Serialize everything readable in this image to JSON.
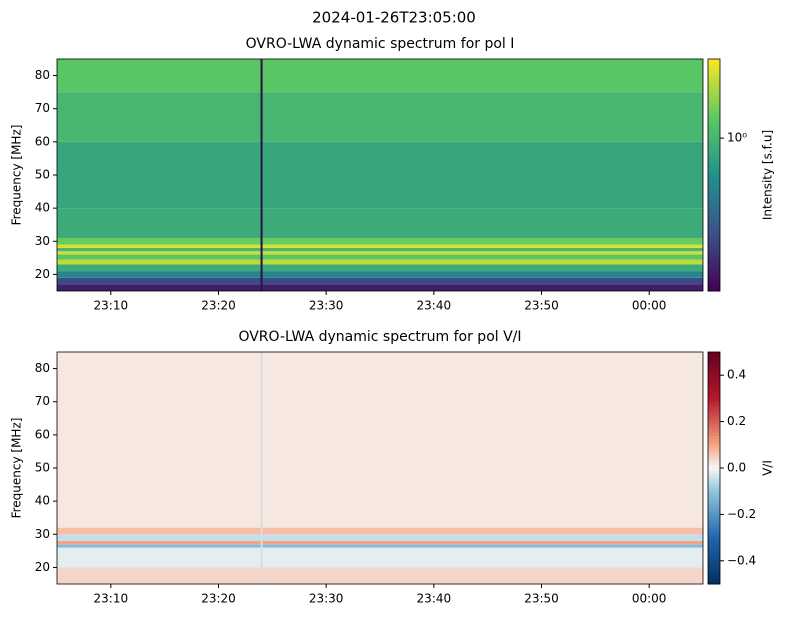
{
  "title": "2024-01-26T23:05:00",
  "chart_data": [
    {
      "type": "heatmap",
      "title": "OVRO-LWA dynamic spectrum for pol I",
      "ylabel": "Frequency [MHz]",
      "colorbar_label": "Intensity [s.f.u]",
      "colormap": "viridis",
      "color_log": true,
      "clim": [
        0.2,
        2.3
      ],
      "cticks": [
        {
          "value": 1,
          "label": "10⁰"
        }
      ],
      "xlim": [
        "23:05",
        "00:05"
      ],
      "xticks": [
        "23:10",
        "23:20",
        "23:30",
        "23:40",
        "23:50",
        "00:00"
      ],
      "ylim": [
        15,
        85
      ],
      "yticks": [
        20,
        30,
        40,
        50,
        60,
        70,
        80
      ],
      "missing_x": "23:24",
      "y_edges": [
        15,
        17,
        19,
        21,
        23,
        24.5,
        26,
        27,
        28,
        29,
        31,
        40,
        60,
        75,
        85
      ],
      "values": [
        0.25,
        0.35,
        0.6,
        0.9,
        1.8,
        1.2,
        1.9,
        1.0,
        2.0,
        1.3,
        0.9,
        0.85,
        1.0,
        1.2
      ]
    },
    {
      "type": "heatmap",
      "title": "OVRO-LWA dynamic spectrum for pol V/I",
      "ylabel": "Frequency [MHz]",
      "colorbar_label": "V/I",
      "colormap": "RdBu_r",
      "color_log": false,
      "clim": [
        -0.5,
        0.5
      ],
      "cticks": [
        {
          "value": -0.4,
          "label": "−0.4"
        },
        {
          "value": -0.2,
          "label": "−0.2"
        },
        {
          "value": 0,
          "label": "0.0"
        },
        0.2,
        0.4
      ],
      "xlim": [
        "23:05",
        "00:05"
      ],
      "xticks": [
        "23:10",
        "23:20",
        "23:30",
        "23:40",
        "23:50",
        "00:00"
      ],
      "ylim": [
        15,
        85
      ],
      "yticks": [
        20,
        30,
        40,
        50,
        60,
        70,
        80
      ],
      "missing_x": "23:24",
      "y_edges": [
        15,
        20,
        26,
        27,
        28,
        30,
        32,
        85
      ],
      "values": [
        0.04,
        -0.02,
        -0.12,
        0.1,
        -0.05,
        0.07,
        0.02
      ]
    }
  ]
}
